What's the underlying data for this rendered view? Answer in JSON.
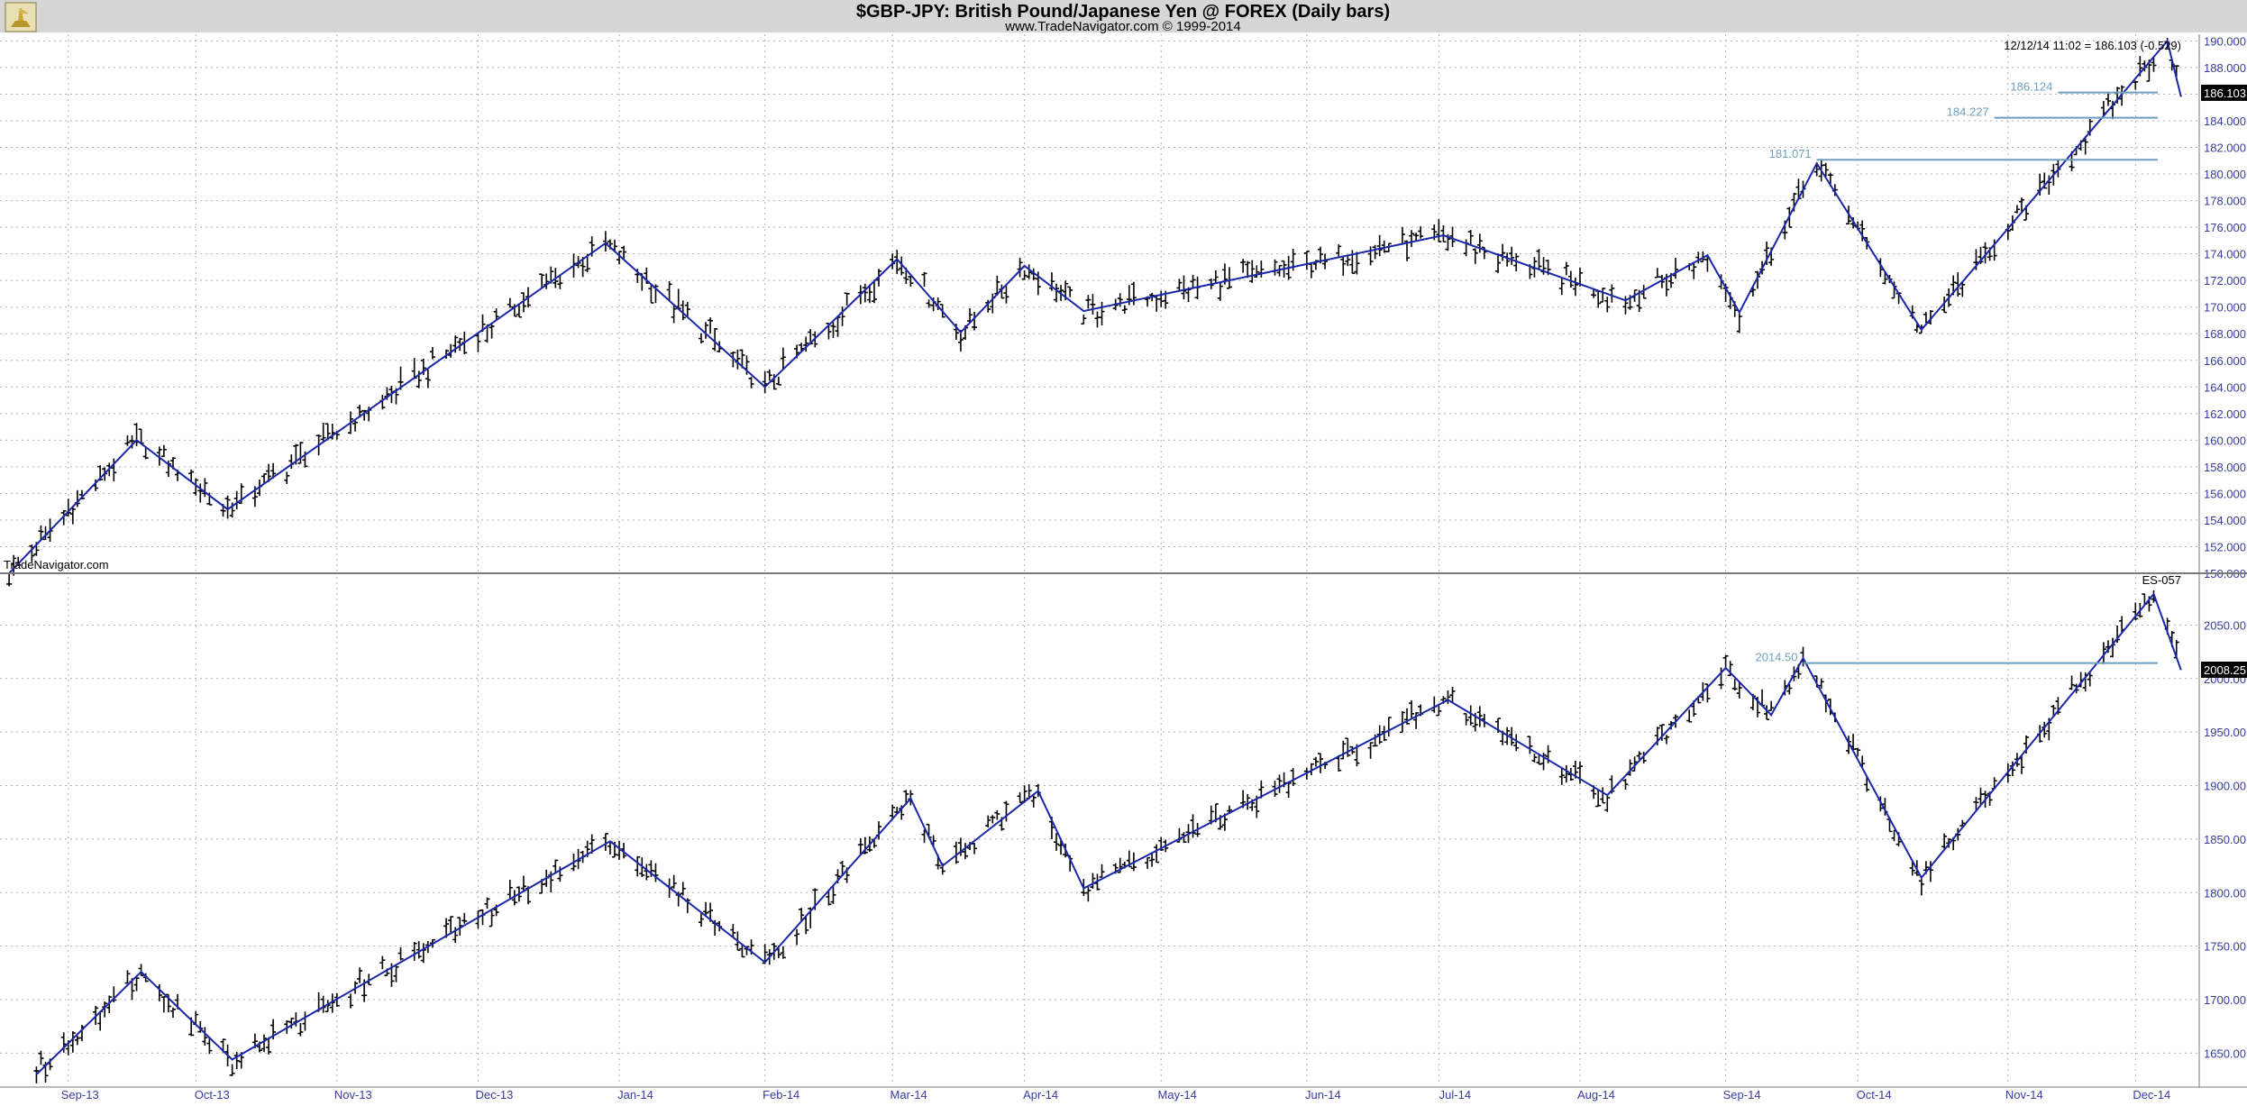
{
  "header": {
    "title": "$GBP-JPY:  British Pound/Japanese Yen @ FOREX  (Daily bars)",
    "subtitle": "www.TradeNavigator.com © 1999-2014",
    "logo_icon": "trade-navigator-logo-icon"
  },
  "colors": {
    "background": "#ffffff",
    "header_background": "#d6d6d6",
    "bars": "#000000",
    "zigzag": "#1a27a8",
    "level_lines": "#6f9fbe",
    "grid": "#b0b0b0",
    "axis_text": "#3a3aa0"
  },
  "chart_data": [
    {
      "type": "ohlc",
      "name": "$GBP-JPY",
      "title": "$GBP-JPY:  British Pound/Japanese Yen @ FOREX  (Daily bars)",
      "watermark": "TradeNavigator.com",
      "info_text": "12/12/14 11:02 = 186.103 (-0.529)",
      "last_value_badge": "186.103",
      "grid": true,
      "y_axis_side": "right",
      "ylim": [
        150,
        190.5
      ],
      "yticks": [
        "150.000",
        "152.000",
        "154.000",
        "156.000",
        "158.000",
        "160.000",
        "162.000",
        "164.000",
        "166.000",
        "168.000",
        "170.000",
        "172.000",
        "174.000",
        "176.000",
        "178.000",
        "180.000",
        "182.000",
        "184.000",
        "186.000",
        "188.000",
        "190.000"
      ],
      "x_labels": [
        "Sep-13",
        "Oct-13",
        "Nov-13",
        "Dec-13",
        "Jan-14",
        "Feb-14",
        "Mar-14",
        "Apr-14",
        "May-14",
        "Jun-14",
        "Jul-14",
        "Aug-14",
        "Sep-14",
        "Oct-14",
        "Nov-14",
        "Dec-14"
      ],
      "x_range": [
        "2013-08-19",
        "2014-12-15"
      ],
      "zigzag": [
        [
          "2013-08-21",
          150.0
        ],
        [
          "2013-09-18",
          160.0
        ],
        [
          "2013-10-08",
          154.8
        ],
        [
          "2013-12-30",
          174.8
        ],
        [
          "2014-02-03",
          164.0
        ],
        [
          "2014-03-04",
          173.6
        ],
        [
          "2014-03-18",
          168.1
        ],
        [
          "2014-04-01",
          173.1
        ],
        [
          "2014-04-14",
          169.7
        ],
        [
          "2014-07-02",
          175.4
        ],
        [
          "2014-08-11",
          170.5
        ],
        [
          "2014-08-29",
          173.9
        ],
        [
          "2014-09-05",
          169.6
        ],
        [
          "2014-09-22",
          180.8
        ],
        [
          "2014-10-15",
          168.3
        ],
        [
          "2014-10-31",
          174.7
        ],
        [
          "2014-12-08",
          190.0
        ],
        [
          "2014-12-11",
          185.8
        ]
      ],
      "levels": [
        {
          "label": "181.071",
          "value": 181.071,
          "from": "2014-09-22"
        },
        {
          "label": "184.227",
          "value": 184.227,
          "from": "2014-10-31"
        },
        {
          "label": "186.124",
          "value": 186.124,
          "from": "2014-11-14"
        }
      ]
    },
    {
      "type": "ohlc",
      "name": "ES-057",
      "last_value_badge": "2008.25",
      "grid": true,
      "y_axis_side": "right",
      "ylim": [
        1620,
        2095
      ],
      "yticks": [
        "1650.00",
        "1700.00",
        "1750.00",
        "1800.00",
        "1850.00",
        "1900.00",
        "1950.00",
        "2000.00",
        "2050.00"
      ],
      "x_range": [
        "2013-08-19",
        "2014-12-15"
      ],
      "zigzag": [
        [
          "2013-08-27",
          1630
        ],
        [
          "2013-09-19",
          1726
        ],
        [
          "2013-10-09",
          1644
        ],
        [
          "2013-12-31",
          1848
        ],
        [
          "2014-02-03",
          1735
        ],
        [
          "2014-03-07",
          1888
        ],
        [
          "2014-03-14",
          1825
        ],
        [
          "2014-04-04",
          1895
        ],
        [
          "2014-04-14",
          1804
        ],
        [
          "2014-07-03",
          1980
        ],
        [
          "2014-08-07",
          1891
        ],
        [
          "2014-09-02",
          2010
        ],
        [
          "2014-09-12",
          1966
        ],
        [
          "2014-09-19",
          2019
        ],
        [
          "2014-10-15",
          1814
        ],
        [
          "2014-12-05",
          2079
        ],
        [
          "2014-12-11",
          2008
        ]
      ],
      "levels": [
        {
          "label": "2014.50",
          "value": 2014.5,
          "from": "2014-09-19"
        }
      ]
    }
  ]
}
